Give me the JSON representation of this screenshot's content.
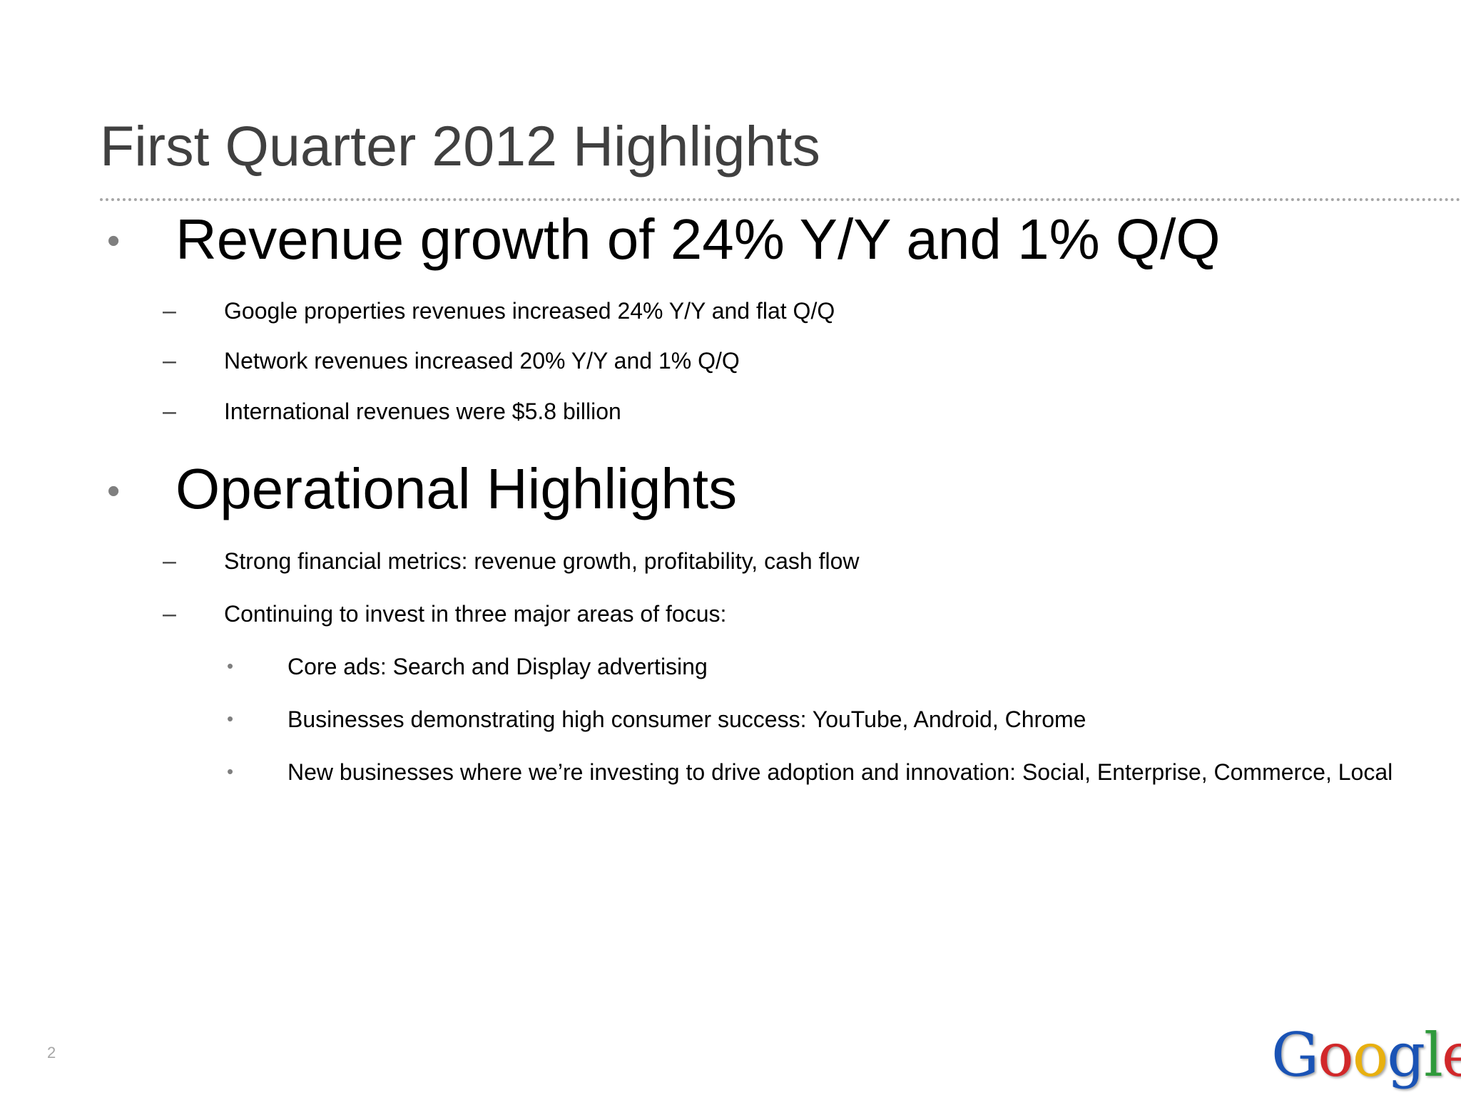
{
  "slide": {
    "title": "First Quarter 2012 Highlights",
    "page_number": "2"
  },
  "sections": [
    {
      "heading": "Revenue growth of 24% Y/Y and 1% Q/Q",
      "items": [
        "Google properties revenues increased 24% Y/Y and flat Q/Q",
        "Network revenues increased 20% Y/Y and 1% Q/Q",
        "International revenues were $5.8 billion"
      ]
    },
    {
      "heading": "Operational Highlights",
      "items": [
        "Strong financial metrics: revenue growth, profitability, cash flow",
        "Continuing to invest in three major areas of focus:"
      ],
      "subitems": [
        "Core ads: Search and Display advertising",
        "Businesses demonstrating high consumer success: YouTube, Android, Chrome",
        "New businesses where we’re investing to drive adoption and innovation: Social, Enterprise, Commerce, Local"
      ]
    }
  ],
  "logo": {
    "text": "Google",
    "letters": [
      "G",
      "o",
      "o",
      "g",
      "l",
      "e"
    ],
    "colors": [
      "#1a53b5",
      "#d1282a",
      "#e8b010",
      "#1a53b5",
      "#2f9a3b",
      "#d1282a"
    ]
  },
  "colors": {
    "title": "#404040",
    "body_text": "#000000",
    "bullet": "#7f7f7f",
    "rule": "#a6a6a6"
  }
}
